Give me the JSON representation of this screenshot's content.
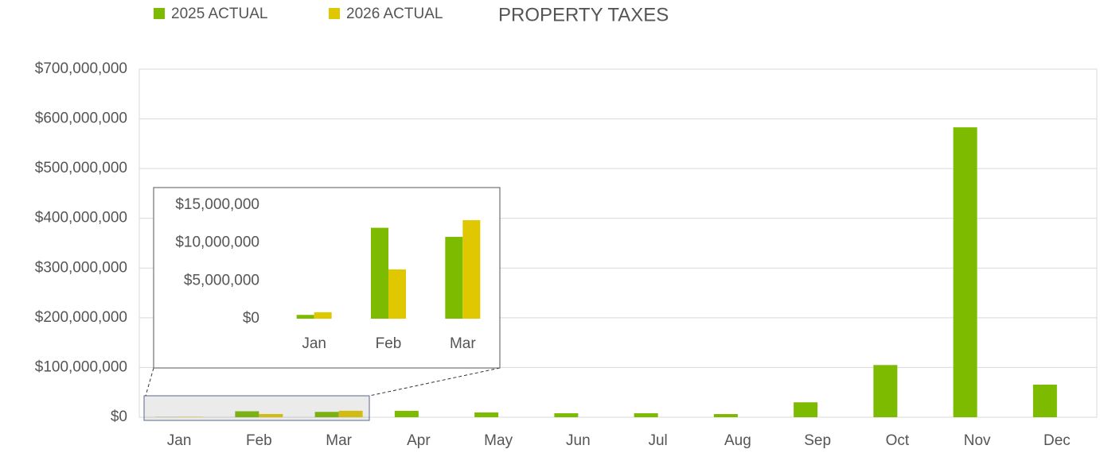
{
  "chart_data": [
    {
      "type": "bar",
      "title": "PROPERTY TAXES",
      "categories": [
        "Jan",
        "Feb",
        "Mar",
        "Apr",
        "May",
        "Jun",
        "Jul",
        "Aug",
        "Sep",
        "Oct",
        "Nov",
        "Dec"
      ],
      "series": [
        {
          "name": "2025 ACTUAL",
          "color": "#7dbb00",
          "values": [
            500000,
            12000000,
            10800000,
            12800000,
            9600000,
            8000000,
            8000000,
            6400000,
            30000000,
            105000000,
            583000000,
            65500000
          ]
        },
        {
          "name": "2026 ACTUAL",
          "color": "#e0c800",
          "values": [
            850000,
            6500000,
            13000000,
            null,
            null,
            null,
            null,
            null,
            null,
            null,
            null,
            null
          ]
        }
      ],
      "ylim": [
        0,
        700000000
      ],
      "yticks": [
        {
          "value": 0,
          "label": "$0"
        },
        {
          "value": 100000000,
          "label": "$100,000,000"
        },
        {
          "value": 200000000,
          "label": "$200,000,000"
        },
        {
          "value": 300000000,
          "label": "$300,000,000"
        },
        {
          "value": 400000000,
          "label": "$400,000,000"
        },
        {
          "value": 500000000,
          "label": "$500,000,000"
        },
        {
          "value": 600000000,
          "label": "$600,000,000"
        },
        {
          "value": 700000000,
          "label": "$700,000,000"
        }
      ],
      "grid": true
    },
    {
      "type": "bar",
      "categories": [
        "Jan",
        "Feb",
        "Mar"
      ],
      "series": [
        {
          "color": "#7dbb00",
          "values": [
            500000,
            12000000,
            10800000
          ]
        },
        {
          "color": "#e0c800",
          "values": [
            850000,
            6500000,
            13000000
          ]
        }
      ],
      "ylim": [
        0,
        15000000
      ],
      "yticks": [
        {
          "value": 0,
          "label": "$0"
        },
        {
          "value": 5000000,
          "label": "$5,000,000"
        },
        {
          "value": 10000000,
          "label": "$10,000,000"
        },
        {
          "value": 15000000,
          "label": "$15,000,000"
        }
      ],
      "grid": false
    }
  ]
}
